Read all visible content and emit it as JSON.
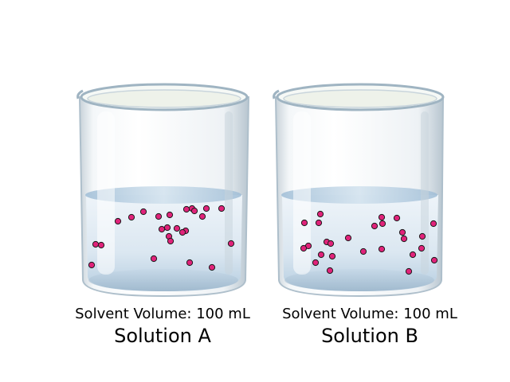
{
  "colors": {
    "particle_fill": "#e0237a",
    "particle_stroke": "#1a1a1a",
    "liquid_surface": "#b9cfe3",
    "liquid_body": "#dce8f2",
    "glass_rim": "#9fb4c2"
  },
  "solutions": [
    {
      "name": "Solution A",
      "volume_label": "Solvent Volume: 100 mL",
      "particle_count": 25
    },
    {
      "name": "Solution B",
      "volume_label": "Solvent Volume: 100 mL",
      "particle_count": 25
    }
  ]
}
